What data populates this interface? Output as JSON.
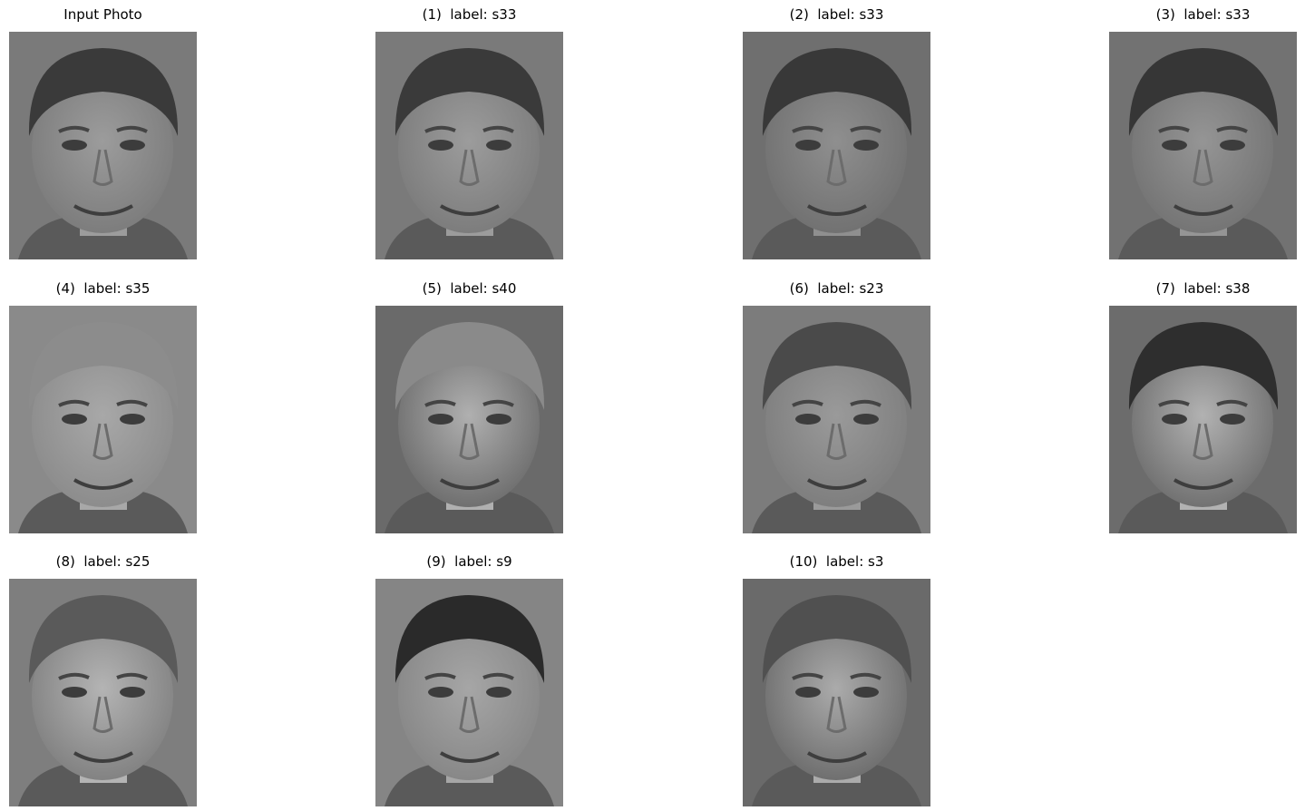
{
  "panels": [
    {
      "title": "Input Photo",
      "image": "grayscale face photo",
      "tone": "#7a7a7a",
      "hair": "#3a3a3a",
      "skin": "#9c9c9c"
    },
    {
      "title": "(1)  label: s33",
      "image": "grayscale face photo",
      "tone": "#7a7a7a",
      "hair": "#3a3a3a",
      "skin": "#9c9c9c"
    },
    {
      "title": "(2)  label: s33",
      "image": "grayscale face photo",
      "tone": "#6f6f6f",
      "hair": "#383838",
      "skin": "#8f8f8f"
    },
    {
      "title": "(3)  label: s33",
      "image": "grayscale face photo",
      "tone": "#727272",
      "hair": "#363636",
      "skin": "#959595"
    },
    {
      "title": "(4)  label: s35",
      "image": "grayscale face photo",
      "tone": "#8a8a8a",
      "hair": "#8c8c8c",
      "skin": "#a8a8a8"
    },
    {
      "title": "(5)  label: s40",
      "image": "grayscale face photo",
      "tone": "#6a6a6a",
      "hair": "#8a8a8a",
      "skin": "#b0b0b0"
    },
    {
      "title": "(6)  label: s23",
      "image": "grayscale face photo",
      "tone": "#7c7c7c",
      "hair": "#4a4a4a",
      "skin": "#9a9a9a"
    },
    {
      "title": "(7)  label: s38",
      "image": "grayscale face photo",
      "tone": "#6c6c6c",
      "hair": "#2e2e2e",
      "skin": "#b2b2b2"
    },
    {
      "title": "(8)  label: s25",
      "image": "grayscale face photo",
      "tone": "#7e7e7e",
      "hair": "#5a5a5a",
      "skin": "#b4b4b4"
    },
    {
      "title": "(9)  label: s9",
      "image": "grayscale face photo",
      "tone": "#858585",
      "hair": "#2a2a2a",
      "skin": "#a6a6a6"
    },
    {
      "title": "(10)  label: s3",
      "image": "grayscale face photo",
      "tone": "#6a6a6a",
      "hair": "#505050",
      "skin": "#ababab"
    }
  ]
}
